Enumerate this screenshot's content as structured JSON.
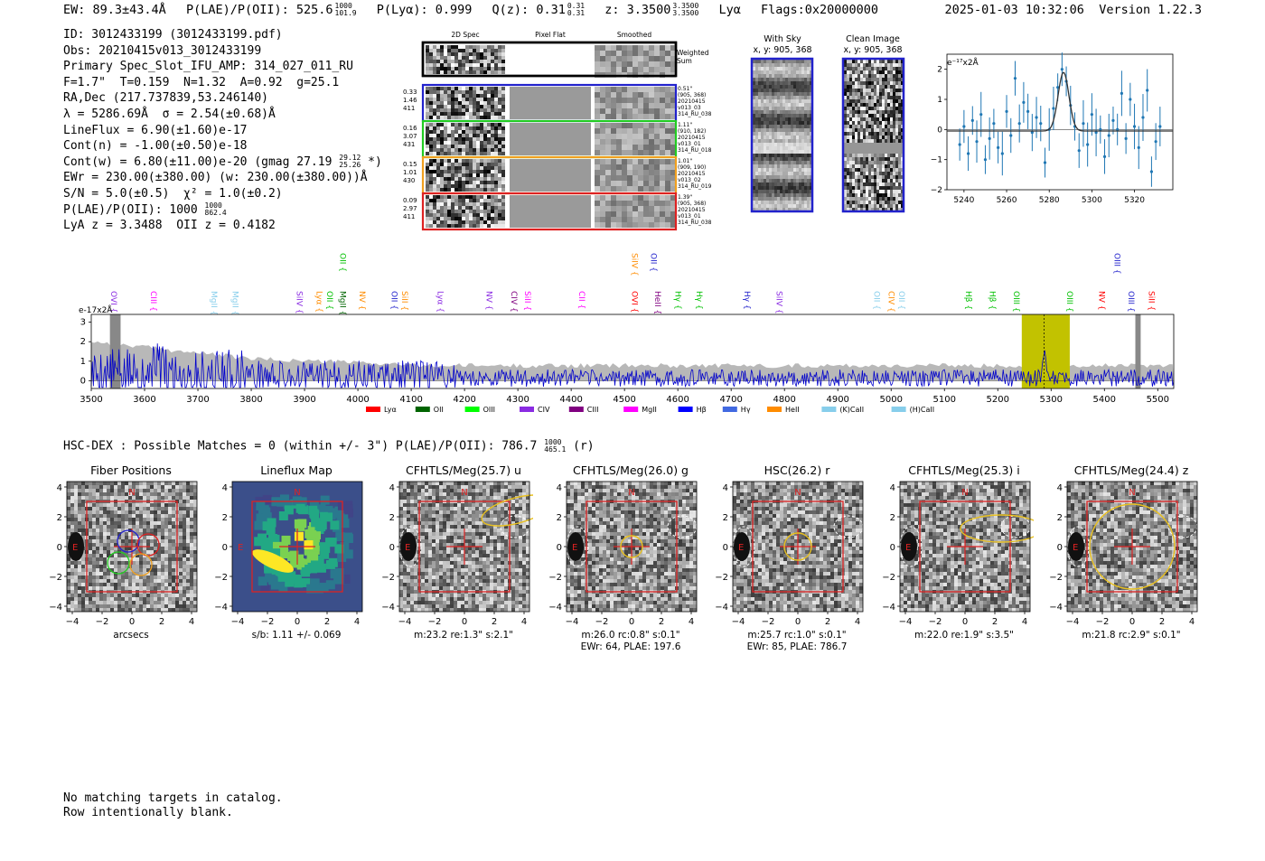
{
  "header": {
    "ew": "EW: 89.3±43.4Å",
    "plae_label": "P(LAE)/P(OII): 525.6",
    "plae_hi": "1000",
    "plae_lo": "101.9",
    "plya": "P(Lyα): 0.999",
    "qz_label": "Q(z): 0.31",
    "qz_hi": "0.31",
    "qz_lo": "0.31",
    "z_label": "z: 3.3500",
    "z_hi": "3.3500",
    "z_lo": "3.3500",
    "line": "Lyα",
    "flags": "Flags:0x20000000",
    "datetime": "2025-01-03 10:32:06",
    "version": "Version 1.22.3"
  },
  "info": {
    "l1": "ID: 3012433199 (3012433199.pdf)",
    "l2": "Obs: 20210415v013_3012433199",
    "l3": "Primary Spec_Slot_IFU_AMP: 314_027_011_RU",
    "l4": "F=1.7\"  T=0.159  N=1.32  A=0.92  g=25.1",
    "l5": "RA,Dec (217.737839,53.246140)",
    "l6": "λ = 5286.69Å  σ = 2.54(±0.68)Å",
    "l7": "LineFlux = 6.90(±1.60)e-17",
    "l8": "Cont(n) = -1.00(±0.50)e-18",
    "l9a": "Cont(w) = 6.80(±11.00)e-20 (gmag 27.19",
    "l9hi": "29.12",
    "l9lo": "25.26",
    "l9b": " *)",
    "l10": "EWr = 230.00(±380.00) (w: 230.00(±380.00))Å",
    "l11": "S/N = 5.0(±0.5)  χ² = 1.0(±0.2)",
    "l12a": "P(LAE)/P(OII): 1000",
    "l12hi": "1000",
    "l12lo": "862.4",
    "l13": "LyA z = 3.3488  OII z = 0.4182"
  },
  "spec2d": {
    "titles": [
      "2D Spec",
      "Pixel Flat",
      "Smoothed"
    ],
    "weighted": "Weighted\nSum",
    "rows": [
      {
        "left": "0.33\n1.46\n411",
        "right": "0.51\"\n(905, 368)\n20210415\nv013_03\n314_RU_038",
        "color": "#2222cc"
      },
      {
        "left": "0.16\n3.07\n431",
        "right": "1.11\"\n(910, 182)\n20210415\nv013_01\n314_RU_018",
        "color": "#22cc22"
      },
      {
        "left": "0.15\n1.01\n430",
        "right": "1.01\"\n(909, 190)\n20210415\nv013_02\n314_RU_019",
        "color": "#f0a020"
      },
      {
        "left": "0.09\n2.97\n411",
        "right": "1.39\"\n(905, 368)\n20210415\nv013_01\n314_RU_038",
        "color": "#dd2222"
      }
    ]
  },
  "sky": {
    "title1": "With Sky",
    "sub1": "x, y: 905, 368",
    "title2": "Clean Image",
    "sub2": "x, y: 905, 368"
  },
  "zoom_chart": {
    "unit": "e⁻¹⁷x2Å",
    "xticks": [
      "5240",
      "5260",
      "5280",
      "5300",
      "5320"
    ],
    "yticks": [
      "2",
      "1",
      "0",
      "−1",
      "−2"
    ]
  },
  "chart_data": [
    {
      "type": "scatter",
      "title": "",
      "xlabel": "",
      "ylabel": "e-17x2Å",
      "xlim": [
        5232,
        5338
      ],
      "ylim": [
        -2,
        2.5
      ],
      "x": [
        5238,
        5240,
        5242,
        5244,
        5246,
        5248,
        5250,
        5252,
        5254,
        5256,
        5258,
        5260,
        5262,
        5264,
        5266,
        5268,
        5270,
        5272,
        5274,
        5276,
        5278,
        5280,
        5282,
        5284,
        5286,
        5288,
        5290,
        5292,
        5294,
        5296,
        5298,
        5300,
        5302,
        5304,
        5306,
        5308,
        5310,
        5312,
        5314,
        5316,
        5318,
        5320,
        5322,
        5324,
        5326,
        5328,
        5330,
        5332
      ],
      "values": [
        -0.5,
        0.1,
        -0.8,
        0.3,
        -0.4,
        0.5,
        -1.0,
        -0.3,
        0.2,
        -0.6,
        -0.8,
        0.6,
        -0.2,
        1.7,
        0.2,
        0.9,
        0.6,
        -0.1,
        0.4,
        0.2,
        -1.1,
        0.0,
        0.7,
        1.4,
        2.0,
        1.6,
        0.8,
        0.1,
        -0.7,
        0.2,
        -0.5,
        0.5,
        -0.1,
        0.0,
        -0.9,
        -0.2,
        0.3,
        0.0,
        1.2,
        -0.3,
        1.0,
        0.1,
        -0.6,
        0.4,
        1.3,
        -1.4,
        -0.4,
        0.1
      ],
      "model": "gaussian center 5286.7 sigma 2.54 amp 1.95"
    },
    {
      "type": "line",
      "title": "",
      "xlabel": "",
      "ylabel": "e-17x2Å",
      "xlim": [
        3500,
        5530
      ],
      "ylim": [
        -0.4,
        3.4
      ],
      "xticks": [
        "3500",
        "3600",
        "3700",
        "3800",
        "3900",
        "4000",
        "4100",
        "4200",
        "4300",
        "4400",
        "4500",
        "4600",
        "4700",
        "4800",
        "4900",
        "5000",
        "5100",
        "5200",
        "5300",
        "5400",
        "5500"
      ],
      "yticks": [
        "3",
        "2",
        "1",
        "0"
      ],
      "highlight_range": [
        5245,
        5335
      ],
      "emission_line": 5286.69,
      "line_markers": [
        {
          "label": "OVI",
          "x": 3532,
          "color": "#8a2be2"
        },
        {
          "label": "CIII",
          "x": 3607,
          "color": "#ff00ff"
        },
        {
          "label": "MgII",
          "x": 3720,
          "color": "#87ceeb"
        },
        {
          "label": "MgII",
          "x": 3760,
          "color": "#87ceeb"
        },
        {
          "label": "SiIV",
          "x": 3880,
          "color": "#8a2be2"
        },
        {
          "label": "Lyα",
          "x": 3918,
          "color": "#ff8c00"
        },
        {
          "label": "OII",
          "x": 3937,
          "color": "#00c000"
        },
        {
          "label": "MgII",
          "x": 3962,
          "color": "#006400"
        },
        {
          "label": "NV",
          "x": 3998,
          "color": "#ff8c00"
        },
        {
          "label": "OII",
          "x": 4058,
          "color": "#2222cc"
        },
        {
          "label": "SiII",
          "x": 4078,
          "color": "#ff8c00"
        },
        {
          "label": "Lyα",
          "x": 4145,
          "color": "#8a2be2"
        },
        {
          "label": "NV",
          "x": 4236,
          "color": "#8a2be2"
        },
        {
          "label": "CIV",
          "x": 4283,
          "color": "#800080"
        },
        {
          "label": "SiII",
          "x": 4308,
          "color": "#ff00ff"
        },
        {
          "label": "CII",
          "x": 4410,
          "color": "#ff00ff"
        },
        {
          "label": "OVI",
          "x": 4509,
          "color": "#ff0000"
        },
        {
          "label": "HeII",
          "x": 4552,
          "color": "#800080"
        },
        {
          "label": "Hγ",
          "x": 4590,
          "color": "#00c000"
        },
        {
          "label": "Hγ",
          "x": 4630,
          "color": "#00c000"
        },
        {
          "label": "Hγ",
          "x": 4720,
          "color": "#2222cc"
        },
        {
          "label": "SiIV",
          "x": 4780,
          "color": "#8a2be2"
        },
        {
          "label": "OII",
          "x": 4963,
          "color": "#87ceeb"
        },
        {
          "label": "CIV",
          "x": 4990,
          "color": "#ff8c00"
        },
        {
          "label": "OII",
          "x": 5010,
          "color": "#87ceeb"
        },
        {
          "label": "Hβ",
          "x": 5135,
          "color": "#00c000"
        },
        {
          "label": "Hβ",
          "x": 5180,
          "color": "#00c000"
        },
        {
          "label": "OIII",
          "x": 5225,
          "color": "#00c000"
        },
        {
          "label": "OIII",
          "x": 5325,
          "color": "#00c000"
        },
        {
          "label": "NV",
          "x": 5385,
          "color": "#ff0000"
        },
        {
          "label": "OIII",
          "x": 5440,
          "color": "#2222cc"
        },
        {
          "label": "SiII",
          "x": 5478,
          "color": "#ff0000"
        }
      ],
      "upper_markers": [
        {
          "label": "OII",
          "x": 3962,
          "color": "#00c000"
        },
        {
          "label": "SiIV",
          "x": 4509,
          "color": "#ff8c00"
        },
        {
          "label": "OII",
          "x": 4545,
          "color": "#2222cc"
        },
        {
          "label": "OIII",
          "x": 5414,
          "color": "#2222cc"
        }
      ],
      "legend": [
        {
          "label": "Lyα",
          "color": "#ff0000"
        },
        {
          "label": "OII",
          "color": "#006400"
        },
        {
          "label": "OIII",
          "color": "#00ff00"
        },
        {
          "label": "CIV",
          "color": "#8a2be2"
        },
        {
          "label": "CIII",
          "color": "#800080"
        },
        {
          "label": "MgII",
          "color": "#ff00ff"
        },
        {
          "label": "Hβ",
          "color": "#0000ff"
        },
        {
          "label": "Hγ",
          "color": "#4169e1"
        },
        {
          "label": "HeII",
          "color": "#ff8c00"
        },
        {
          "label": "(K)CaII",
          "color": "#87ceeb"
        },
        {
          "label": "(H)CaII",
          "color": "#87ceeb"
        }
      ]
    }
  ],
  "hscdex": {
    "text": "HSC-DEX : Possible Matches = 0 (within +/- 3\")  P(LAE)/P(OII): 786.7",
    "hi": "1000",
    "lo": "465.1",
    "tail": " (r)"
  },
  "cutouts": [
    {
      "title": "Fiber Positions",
      "cap1": "arcsecs",
      "cap2": ""
    },
    {
      "title": "Lineflux Map",
      "cap1": "s/b: 1.11 +/- 0.069",
      "cap2": ""
    },
    {
      "title": "CFHTLS/Meg(25.7) u",
      "cap1": "m:23.2  re:1.3\"  s:2.1\"",
      "cap2": ""
    },
    {
      "title": "CFHTLS/Meg(26.0) g",
      "cap1": "m:26.0 rc:0.8\"  s:0.1\"",
      "cap2": "EWr: 64, PLAE: 197.6"
    },
    {
      "title": "HSC(26.2) r",
      "cap1": "m:25.7 rc:1.0\"  s:0.1\"",
      "cap2": "EWr: 85, PLAE: 786.7"
    },
    {
      "title": "CFHTLS/Meg(25.3) i",
      "cap1": "m:22.0  re:1.9\"  s:3.5\"",
      "cap2": ""
    },
    {
      "title": "CFHTLS/Meg(24.4) z",
      "cap1": "m:21.8 rc:2.9\"  s:0.1\"",
      "cap2": ""
    }
  ],
  "cutout_axes": {
    "xticks": [
      "−4",
      "−2",
      "0",
      "2",
      "4"
    ],
    "yticks": [
      "4",
      "2",
      "0",
      "−2",
      "−4"
    ],
    "north": "N",
    "east": "E"
  },
  "footer": {
    "l1": "No matching targets in catalog.",
    "l2": "Row intentionally blank."
  }
}
